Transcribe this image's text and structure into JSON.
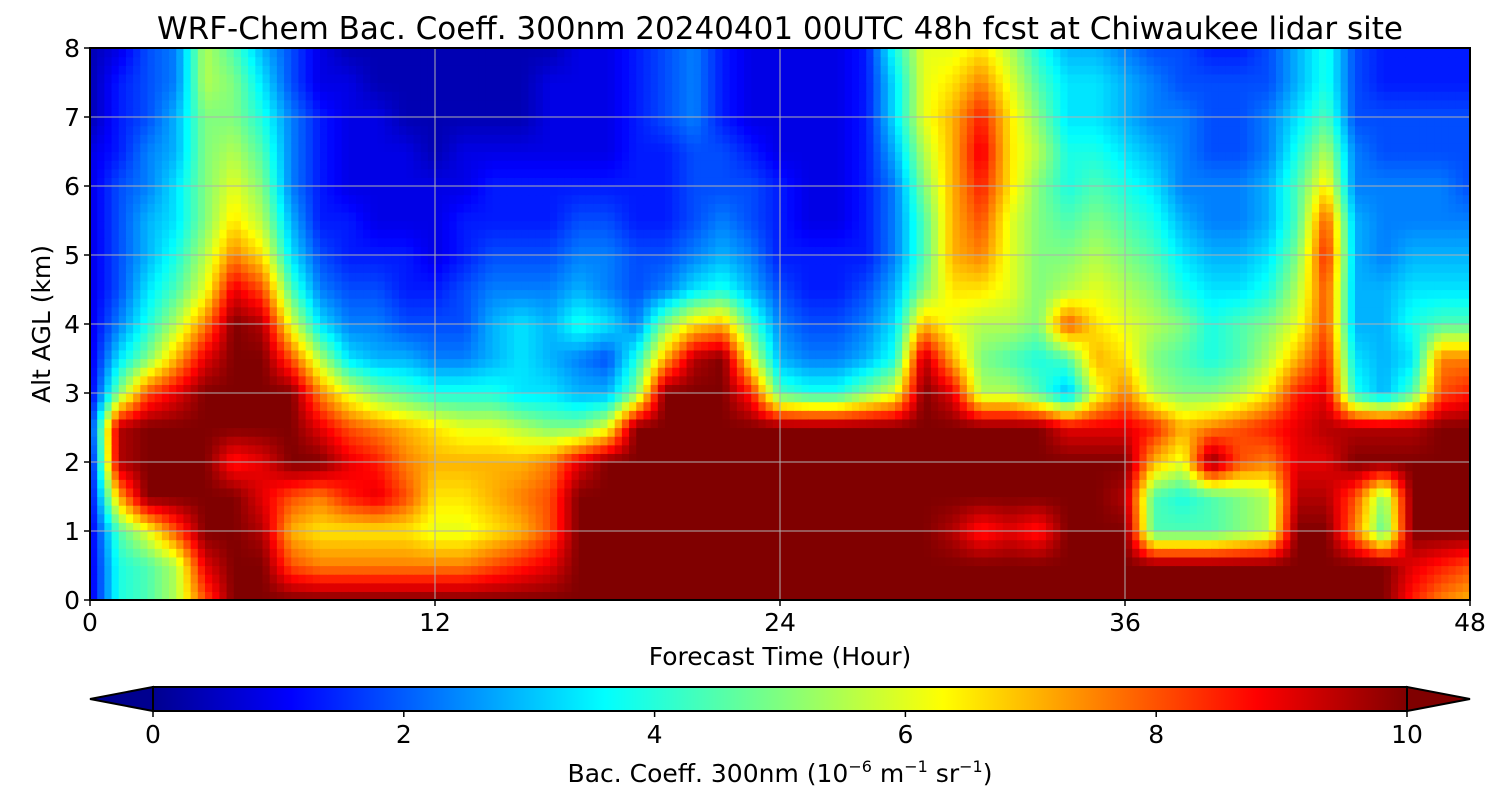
{
  "chart_data": {
    "type": "heatmap",
    "title": "WRF-Chem Bac. Coeff. 300nm  20240401 00UTC 48h fcst at Chiwaukee lidar site",
    "xlabel": "Forecast Time (Hour)",
    "ylabel": "Alt AGL (km)",
    "xlim": [
      0,
      48
    ],
    "ylim": [
      0,
      8
    ],
    "x_ticks": [
      "0",
      "12",
      "24",
      "36",
      "48"
    ],
    "y_ticks": [
      "0",
      "1",
      "2",
      "3",
      "4",
      "5",
      "6",
      "7",
      "8"
    ],
    "grid": true,
    "colormap": "jet",
    "colorbar": {
      "label_main": "Bac. Coeff. 300nm  (10",
      "label_exp1": "−6",
      "label_mid": " m",
      "label_exp2": "−1",
      "label_end": " sr",
      "label_exp3": "−1",
      "label_close": ")",
      "range": [
        0,
        10
      ],
      "extend": "both",
      "ticks": [
        "0",
        "2",
        "4",
        "6",
        "8",
        "10"
      ]
    },
    "x": [
      0,
      1,
      2,
      3,
      4,
      5,
      6,
      7,
      8,
      9,
      10,
      11,
      12,
      13,
      14,
      15,
      16,
      17,
      18,
      19,
      20,
      21,
      22,
      23,
      24,
      25,
      26,
      27,
      28,
      29,
      30,
      31,
      32,
      33,
      34,
      35,
      36,
      37,
      38,
      39,
      40,
      41,
      42,
      43,
      44,
      45,
      46,
      47,
      48
    ],
    "y": [
      0,
      0.5,
      1,
      1.5,
      2,
      2.5,
      3,
      3.5,
      4,
      4.5,
      5,
      5.5,
      6,
      6.5,
      7,
      7.5,
      8
    ],
    "z_note_rows_by_y": "rows ordered from y=0 (bottom) to y=8 (top); values in 1e-6 m-1 sr-1",
    "z": [
      [
        1.0,
        4.0,
        4.5,
        5.5,
        8.0,
        10,
        10,
        10,
        10,
        10,
        10,
        10,
        10,
        10,
        10,
        10,
        10,
        10,
        10,
        10,
        10,
        10,
        10,
        10,
        10,
        10,
        10,
        10,
        10,
        10,
        10,
        10,
        10,
        10,
        10,
        10,
        10,
        10,
        10,
        10,
        10,
        10,
        10,
        10,
        10,
        10,
        8.5,
        7.5,
        7.0
      ],
      [
        1.0,
        4.0,
        4.5,
        5.5,
        9.0,
        10,
        10,
        8.0,
        7.5,
        7.5,
        7.5,
        7.5,
        7.5,
        7.5,
        8.0,
        8.5,
        9.0,
        10,
        10,
        10,
        10,
        10,
        10,
        10,
        10,
        10,
        10,
        10,
        10,
        10,
        10,
        10,
        10,
        10,
        10,
        10,
        10,
        10,
        10,
        10,
        10,
        10,
        10,
        10,
        10,
        10,
        9.0,
        8.5,
        8.0
      ],
      [
        1.0,
        4.5,
        6.0,
        8.0,
        10,
        10,
        9.5,
        7.0,
        6.5,
        6.5,
        6.5,
        6.5,
        6.0,
        6.0,
        6.5,
        7.0,
        8.0,
        10,
        10,
        10,
        10,
        10,
        10,
        10,
        10,
        10,
        10,
        10,
        10,
        10,
        9.5,
        8.5,
        9.0,
        8.5,
        10,
        10,
        10,
        4.5,
        4.5,
        4.5,
        5.0,
        5.5,
        10,
        10,
        7.5,
        4.5,
        10,
        10,
        10
      ],
      [
        1.0,
        7.0,
        10,
        10,
        10,
        10,
        9.0,
        8.0,
        7.5,
        8.5,
        9.0,
        8.0,
        6.5,
        6.5,
        7.0,
        7.5,
        8.0,
        10,
        10,
        10,
        10,
        10,
        10,
        10,
        10,
        10,
        10,
        10,
        10,
        10,
        10,
        10,
        10,
        10,
        10,
        10,
        9.5,
        4.5,
        4.0,
        4.5,
        5.0,
        5.5,
        9.5,
        9.5,
        8.0,
        5.0,
        10,
        10,
        10
      ],
      [
        1.0,
        9.5,
        10,
        10,
        10,
        8.5,
        9.0,
        10,
        10,
        9.0,
        8.5,
        7.5,
        7.0,
        7.0,
        7.0,
        7.0,
        7.5,
        9.0,
        10,
        10,
        10,
        10,
        10,
        10,
        10,
        10,
        10,
        10,
        10,
        10,
        10,
        10,
        10,
        10,
        10,
        10,
        10,
        7.0,
        6.0,
        10,
        8.0,
        7.5,
        9.0,
        9.0,
        10,
        10,
        10,
        10,
        10
      ],
      [
        1.5,
        9.5,
        10,
        10,
        10,
        10,
        10,
        10,
        9.0,
        8.0,
        7.5,
        7.0,
        6.5,
        6.0,
        6.0,
        5.5,
        5.0,
        5.0,
        6.0,
        10,
        10,
        10,
        10,
        10,
        10,
        10,
        10,
        10,
        10,
        10,
        10,
        10,
        10,
        10,
        9.0,
        9.0,
        9.0,
        8.5,
        7.0,
        7.5,
        8.0,
        8.5,
        9.0,
        9.5,
        9.5,
        9.5,
        9.5,
        10,
        10
      ],
      [
        1.0,
        5.0,
        8.0,
        9.0,
        10,
        10,
        10,
        10,
        7.5,
        6.0,
        5.0,
        4.5,
        4.0,
        4.0,
        4.0,
        3.5,
        3.5,
        3.0,
        3.0,
        5.0,
        10,
        10,
        10,
        8.5,
        4.5,
        4.0,
        4.0,
        5.0,
        6.0,
        10,
        9.0,
        5.5,
        5.5,
        4.5,
        3.0,
        6.0,
        7.5,
        5.5,
        5.0,
        5.0,
        5.5,
        6.5,
        8.5,
        9.0,
        4.0,
        3.0,
        4.5,
        8.0,
        8.5
      ],
      [
        1.0,
        3.5,
        5.0,
        7.0,
        9.0,
        10,
        10,
        8.0,
        5.5,
        3.5,
        3.0,
        3.0,
        2.5,
        2.5,
        3.0,
        3.5,
        3.0,
        2.5,
        2.0,
        4.0,
        7.0,
        9.5,
        10,
        6.0,
        3.0,
        2.5,
        2.5,
        3.0,
        4.0,
        9.5,
        7.0,
        5.0,
        4.5,
        4.0,
        4.5,
        7.0,
        6.5,
        5.0,
        4.5,
        4.0,
        4.5,
        5.5,
        7.0,
        8.5,
        3.5,
        3.0,
        3.5,
        7.5,
        7.5
      ],
      [
        1.0,
        2.5,
        4.0,
        5.5,
        7.5,
        10,
        9.5,
        6.0,
        3.5,
        2.5,
        2.5,
        2.0,
        2.0,
        2.0,
        3.0,
        3.5,
        3.0,
        4.0,
        3.5,
        2.5,
        5.0,
        6.5,
        7.0,
        4.5,
        2.5,
        2.0,
        2.0,
        2.5,
        3.5,
        7.0,
        6.0,
        5.5,
        5.5,
        5.0,
        8.0,
        6.5,
        6.0,
        5.5,
        5.0,
        4.0,
        4.5,
        5.0,
        6.0,
        8.0,
        3.0,
        3.0,
        4.0,
        4.5,
        4.5
      ],
      [
        1.0,
        2.0,
        3.5,
        4.5,
        6.0,
        9.0,
        8.0,
        4.5,
        2.5,
        2.0,
        2.0,
        1.5,
        1.5,
        2.0,
        2.5,
        2.5,
        2.5,
        3.0,
        2.5,
        2.0,
        2.5,
        3.5,
        4.0,
        3.0,
        2.0,
        1.5,
        1.5,
        2.0,
        3.0,
        5.0,
        6.5,
        6.5,
        6.0,
        5.0,
        5.5,
        6.0,
        5.5,
        5.0,
        4.0,
        3.5,
        3.5,
        4.0,
        5.5,
        8.0,
        3.0,
        3.0,
        3.5,
        3.5,
        3.5
      ],
      [
        1.0,
        2.0,
        3.0,
        4.0,
        5.5,
        7.5,
        6.5,
        3.5,
        2.0,
        1.5,
        1.5,
        1.5,
        1.0,
        1.5,
        2.0,
        2.0,
        2.0,
        2.5,
        2.5,
        2.0,
        2.0,
        2.5,
        3.0,
        2.5,
        1.5,
        1.5,
        1.5,
        1.5,
        2.5,
        4.5,
        7.0,
        7.5,
        6.0,
        5.0,
        5.0,
        5.5,
        5.0,
        4.5,
        3.5,
        3.0,
        3.0,
        3.5,
        5.0,
        8.5,
        3.0,
        2.5,
        3.0,
        3.0,
        3.0
      ],
      [
        1.0,
        2.0,
        3.0,
        3.5,
        5.0,
        6.5,
        5.5,
        3.0,
        1.5,
        1.5,
        1.0,
        1.0,
        1.0,
        1.5,
        1.5,
        1.5,
        1.5,
        2.0,
        2.0,
        1.5,
        1.5,
        2.0,
        2.5,
        2.0,
        1.5,
        1.0,
        1.0,
        1.5,
        2.5,
        4.5,
        7.0,
        8.0,
        6.0,
        5.0,
        4.5,
        5.0,
        4.5,
        4.0,
        3.0,
        2.5,
        2.5,
        3.0,
        4.5,
        8.0,
        3.0,
        2.5,
        2.5,
        2.5,
        2.5
      ],
      [
        1.0,
        2.0,
        2.5,
        3.5,
        5.0,
        6.0,
        5.0,
        2.5,
        1.5,
        1.0,
        1.0,
        1.0,
        1.0,
        1.0,
        1.5,
        1.5,
        1.5,
        1.5,
        1.5,
        1.5,
        1.5,
        2.0,
        2.0,
        2.0,
        1.5,
        1.0,
        1.0,
        1.5,
        2.5,
        5.0,
        7.0,
        8.5,
        6.5,
        5.0,
        4.0,
        4.5,
        4.0,
        3.5,
        2.5,
        2.5,
        2.5,
        3.0,
        4.5,
        6.5,
        2.5,
        2.5,
        2.5,
        2.5,
        2.0
      ],
      [
        1.0,
        1.5,
        2.5,
        3.0,
        5.0,
        5.5,
        4.5,
        2.5,
        1.5,
        1.0,
        1.0,
        1.0,
        0.5,
        1.0,
        1.0,
        1.0,
        1.0,
        1.0,
        1.0,
        1.5,
        1.5,
        2.0,
        2.0,
        1.5,
        1.0,
        1.0,
        1.0,
        1.5,
        3.0,
        5.5,
        7.0,
        9.0,
        6.5,
        5.5,
        4.0,
        4.0,
        3.5,
        3.0,
        2.5,
        2.0,
        2.0,
        2.5,
        4.0,
        5.5,
        2.5,
        2.0,
        2.0,
        2.0,
        2.0
      ],
      [
        0.5,
        1.5,
        2.0,
        3.0,
        5.0,
        5.0,
        4.0,
        2.5,
        1.5,
        1.0,
        1.0,
        0.5,
        0.5,
        0.5,
        0.5,
        0.5,
        1.0,
        1.0,
        1.0,
        1.5,
        2.0,
        2.5,
        1.5,
        1.0,
        1.0,
        1.0,
        1.0,
        1.5,
        3.5,
        6.0,
        7.0,
        8.5,
        6.5,
        5.0,
        3.5,
        3.5,
        3.0,
        2.5,
        2.5,
        2.0,
        2.0,
        2.5,
        3.5,
        4.5,
        2.0,
        2.0,
        2.0,
        2.0,
        2.0
      ],
      [
        0.5,
        1.5,
        2.0,
        2.5,
        5.5,
        5.0,
        3.5,
        2.0,
        1.0,
        1.0,
        0.5,
        0.5,
        0.5,
        0.5,
        0.5,
        0.5,
        1.0,
        1.0,
        1.0,
        1.5,
        2.0,
        2.5,
        1.5,
        1.0,
        1.0,
        1.0,
        1.0,
        1.5,
        3.5,
        6.0,
        6.5,
        7.5,
        6.0,
        4.5,
        3.5,
        3.5,
        3.0,
        2.5,
        2.0,
        2.0,
        2.0,
        2.0,
        3.0,
        4.0,
        2.0,
        1.5,
        1.5,
        1.5,
        1.5
      ],
      [
        0.5,
        1.0,
        2.0,
        2.5,
        5.5,
        4.5,
        3.0,
        2.0,
        1.0,
        0.5,
        0.5,
        0.5,
        0.5,
        0.5,
        0.5,
        0.5,
        0.5,
        1.0,
        1.0,
        1.5,
        2.0,
        2.5,
        1.5,
        1.0,
        1.0,
        1.0,
        1.0,
        1.5,
        4.0,
        6.0,
        6.0,
        6.5,
        5.5,
        4.0,
        3.0,
        3.0,
        2.5,
        2.0,
        2.0,
        1.5,
        1.5,
        2.0,
        3.0,
        4.0,
        2.0,
        1.5,
        1.5,
        1.5,
        1.5
      ]
    ]
  }
}
